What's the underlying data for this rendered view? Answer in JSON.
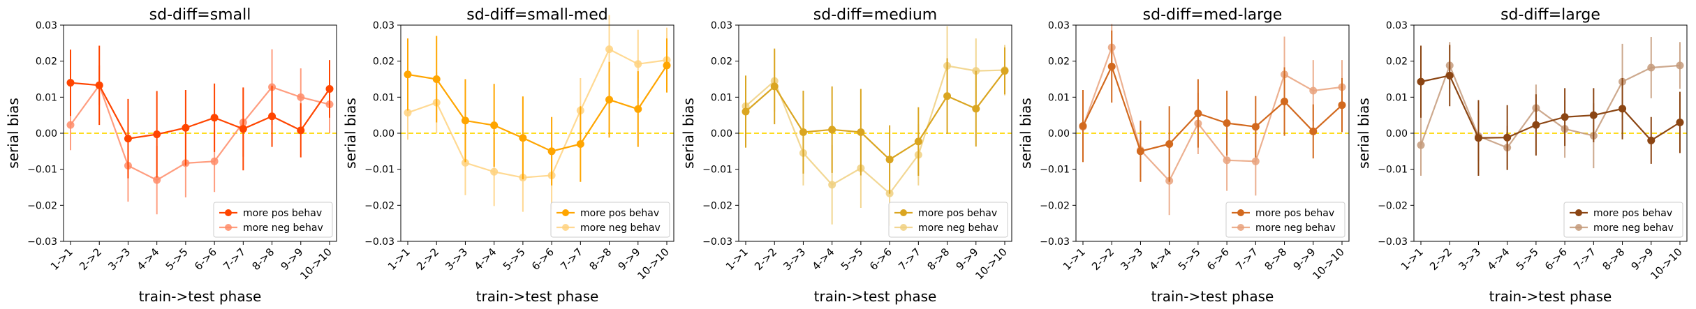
{
  "chart_data": [
    {
      "type": "line",
      "title": "sd-diff=small",
      "xlabel": "train->test phase",
      "ylabel": "serial bias",
      "ylim": [
        -0.03,
        0.03
      ],
      "yticks": [
        "0.03",
        "0.02",
        "0.01",
        "0.00",
        "−0.01",
        "−0.02",
        "−0.03"
      ],
      "categories": [
        "1->1",
        "2->2",
        "3->3",
        "4->4",
        "5->5",
        "6->6",
        "7->7",
        "8->8",
        "9->9",
        "10->10"
      ],
      "zero_line_color": "#FFD700",
      "legend_position": "lower-right",
      "series": [
        {
          "name": "more pos behav",
          "color": "#FF4500",
          "values": [
            0.014,
            0.0133,
            -0.0015,
            -0.0003,
            0.0015,
            0.0043,
            0.0012,
            0.0047,
            0.0008,
            0.0123
          ],
          "err": [
            0.0092,
            0.011,
            0.011,
            0.012,
            0.0105,
            0.0095,
            0.0115,
            0.0085,
            0.0075,
            0.008
          ]
        },
        {
          "name": "more neg behav",
          "color": "#FF8C69",
          "values": [
            0.0023,
            0.0133,
            -0.009,
            -0.013,
            -0.0083,
            -0.0078,
            0.003,
            0.0128,
            0.01,
            0.008
          ],
          "err": [
            0.007,
            0.0055,
            0.01,
            0.0095,
            0.0095,
            0.0085,
            0.0095,
            0.0105,
            0.008,
            0.008
          ]
        }
      ]
    },
    {
      "type": "line",
      "title": "sd-diff=small-med",
      "xlabel": "train->test phase",
      "ylabel": "serial bias",
      "ylim": [
        -0.03,
        0.03
      ],
      "yticks": [
        "0.03",
        "0.02",
        "0.01",
        "0.00",
        "−0.01",
        "−0.02",
        "−0.03"
      ],
      "categories": [
        "1->1",
        "2->2",
        "3->3",
        "4->4",
        "5->5",
        "6->6",
        "7->7",
        "8->8",
        "9->9",
        "10->10"
      ],
      "zero_line_color": "#FFD700",
      "legend_position": "lower-right",
      "series": [
        {
          "name": "more pos behav",
          "color": "#FFA500",
          "values": [
            0.0163,
            0.015,
            0.0035,
            0.0022,
            -0.0013,
            -0.005,
            -0.003,
            0.0093,
            0.0067,
            0.0188
          ],
          "err": [
            0.01,
            0.012,
            0.0115,
            0.0115,
            0.0115,
            0.0095,
            0.0105,
            0.0105,
            0.0105,
            0.0075
          ]
        },
        {
          "name": "more neg behav",
          "color": "#FFD27F",
          "values": [
            0.0057,
            0.0085,
            -0.0082,
            -0.0107,
            -0.0123,
            -0.0117,
            0.0063,
            0.0233,
            0.0192,
            0.0203
          ],
          "err": [
            0.0075,
            0.0085,
            0.009,
            0.0095,
            0.0095,
            0.0095,
            0.009,
            0.0095,
            0.0095,
            0.009
          ]
        }
      ]
    },
    {
      "type": "line",
      "title": "sd-diff=medium",
      "xlabel": "train->test phase",
      "ylabel": "serial bias",
      "ylim": [
        -0.03,
        0.03
      ],
      "yticks": [
        "0.03",
        "0.02",
        "0.01",
        "0.00",
        "−0.01",
        "−0.02",
        "−0.03"
      ],
      "categories": [
        "1->1",
        "2->2",
        "3->3",
        "4->4",
        "5->5",
        "6->6",
        "7->7",
        "8->8",
        "9->9",
        "10->10"
      ],
      "zero_line_color": "#FFD700",
      "legend_position": "lower-right",
      "series": [
        {
          "name": "more pos behav",
          "color": "#DAA520",
          "values": [
            0.006,
            0.013,
            0.0003,
            0.001,
            0.0003,
            -0.0073,
            -0.0023,
            0.0103,
            0.0068,
            0.0173
          ],
          "err": [
            0.01,
            0.0105,
            0.0115,
            0.012,
            0.012,
            0.0095,
            0.0095,
            0.0105,
            0.0105,
            0.0065
          ]
        },
        {
          "name": "more neg behav",
          "color": "#F0D080",
          "values": [
            0.0075,
            0.0145,
            -0.0055,
            -0.0143,
            -0.0097,
            -0.0167,
            -0.006,
            0.0187,
            0.0173,
            0.0175
          ],
          "err": [
            0.008,
            0.0085,
            0.009,
            0.011,
            0.011,
            0.009,
            0.0085,
            0.011,
            0.009,
            0.007
          ]
        }
      ]
    },
    {
      "type": "line",
      "title": "sd-diff=med-large",
      "xlabel": "train->test phase",
      "ylabel": "serial bias",
      "ylim": [
        -0.03,
        0.03
      ],
      "yticks": [
        "0.03",
        "0.02",
        "0.01",
        "0.00",
        "−0.01",
        "−0.02",
        "−0.03"
      ],
      "categories": [
        "1->1",
        "2->2",
        "3->3",
        "4->4",
        "5->5",
        "6->6",
        "7->7",
        "8->8",
        "9->9",
        "10->10"
      ],
      "zero_line_color": "#FFD700",
      "legend_position": "lower-right",
      "series": [
        {
          "name": "more pos behav",
          "color": "#D2691E",
          "values": [
            0.002,
            0.0185,
            -0.005,
            -0.003,
            0.0055,
            0.0028,
            0.0018,
            0.0088,
            0.0005,
            0.0078
          ],
          "err": [
            0.01,
            0.01,
            0.0085,
            0.0105,
            0.0095,
            0.009,
            0.0085,
            0.0095,
            0.0075,
            0.0075
          ]
        },
        {
          "name": "more neg behav",
          "color": "#E9A27C",
          "values": [
            0.0018,
            0.0238,
            -0.0047,
            -0.0132,
            0.0027,
            -0.0075,
            -0.0078,
            0.0163,
            0.0118,
            0.0128
          ],
          "err": [
            0.0075,
            0.0065,
            0.0075,
            0.0095,
            0.0085,
            0.0085,
            0.0095,
            0.0105,
            0.0085,
            0.0075
          ]
        }
      ]
    },
    {
      "type": "line",
      "title": "sd-diff=large",
      "xlabel": "train->test phase",
      "ylabel": "serial bias",
      "ylim": [
        -0.03,
        0.03
      ],
      "yticks": [
        "0.03",
        "0.02",
        "0.01",
        "0.00",
        "−0.01",
        "−0.02",
        "−0.03"
      ],
      "categories": [
        "1->1",
        "2->2",
        "3->3",
        "4->4",
        "5->5",
        "6->6",
        "7->7",
        "8->8",
        "9->9",
        "10->10"
      ],
      "zero_line_color": "#FFD700",
      "legend_position": "lower-right",
      "series": [
        {
          "name": "more pos behav",
          "color": "#8B4513",
          "values": [
            0.0143,
            0.016,
            -0.0013,
            -0.0012,
            0.0023,
            0.0045,
            0.005,
            0.0068,
            -0.002,
            0.003
          ],
          "err": [
            0.01,
            0.0085,
            0.0105,
            0.009,
            0.0085,
            0.008,
            0.0075,
            0.0085,
            0.0065,
            0.0085
          ]
        },
        {
          "name": "more neg behav",
          "color": "#C49A7A",
          "values": [
            -0.0033,
            0.0188,
            -0.0008,
            -0.004,
            0.007,
            0.0012,
            -0.0007,
            0.0143,
            0.0182,
            0.0188
          ],
          "err": [
            0.0085,
            0.0065,
            0.007,
            0.006,
            0.0065,
            0.008,
            0.009,
            0.0105,
            0.0085,
            0.0065
          ]
        }
      ]
    }
  ]
}
